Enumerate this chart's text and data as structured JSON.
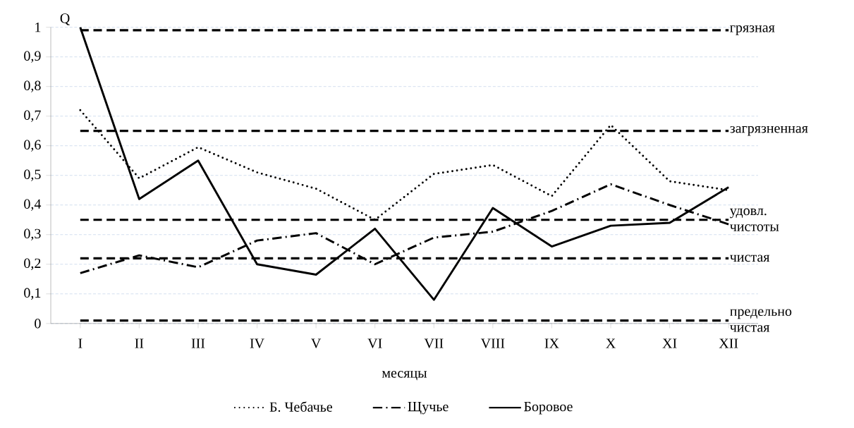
{
  "chart_data": {
    "type": "line",
    "xlabel": "месяцы",
    "ylabel": "Q",
    "categories": [
      "I",
      "II",
      "III",
      "IV",
      "V",
      "VI",
      "VII",
      "VIII",
      "IX",
      "X",
      "XI",
      "XII"
    ],
    "series": [
      {
        "name": "Б. Чебачье",
        "color": "#000000",
        "line_style": "dotted",
        "values": [
          0.72,
          0.49,
          0.595,
          0.51,
          0.455,
          0.35,
          0.505,
          0.535,
          0.43,
          0.67,
          0.48,
          0.45
        ]
      },
      {
        "name": "Щучье",
        "color": "#000000",
        "line_style": "dashdot",
        "values": [
          0.17,
          0.23,
          0.19,
          0.28,
          0.305,
          0.2,
          0.29,
          0.31,
          0.38,
          0.47,
          0.4,
          0.335
        ]
      },
      {
        "name": "Боровое",
        "color": "#000000",
        "line_style": "solid",
        "values": [
          1.0,
          0.42,
          0.55,
          0.2,
          0.165,
          0.32,
          0.08,
          0.39,
          0.26,
          0.33,
          0.34,
          0.46
        ]
      }
    ],
    "ylim": [
      0,
      1
    ],
    "yticks": [
      0,
      {
        "value": 0.1,
        "label": "0,1"
      },
      {
        "value": 0.2,
        "label": "0,2"
      },
      {
        "value": 0.3,
        "label": "0,3"
      },
      {
        "value": 0.4,
        "label": "0,4"
      },
      {
        "value": 0.5,
        "label": "0,5"
      },
      {
        "value": 0.6,
        "label": "0,6"
      },
      {
        "value": 0.7,
        "label": "0,7"
      },
      {
        "value": 0.8,
        "label": "0,8"
      },
      {
        "value": 0.9,
        "label": "0,9"
      },
      1
    ],
    "ref_lines": [
      {
        "axis": "y",
        "value": 0.99,
        "label": "грязная",
        "color": "#000000",
        "line_style": "dashed"
      },
      {
        "axis": "y",
        "value": 0.65,
        "label": "загрязненная",
        "color": "#000000",
        "line_style": "dashed"
      },
      {
        "axis": "y",
        "value": 0.35,
        "label": "удовл. чистоты",
        "color": "#000000",
        "line_style": "dashed"
      },
      {
        "axis": "y",
        "value": 0.22,
        "label": "чистая",
        "color": "#000000",
        "line_style": "dashed"
      },
      {
        "axis": "y",
        "value": 0.01,
        "label": "предельно чистая",
        "color": "#000000",
        "line_style": "dashed"
      }
    ],
    "grid": "y",
    "legend": "bottom",
    "marker": "none"
  }
}
